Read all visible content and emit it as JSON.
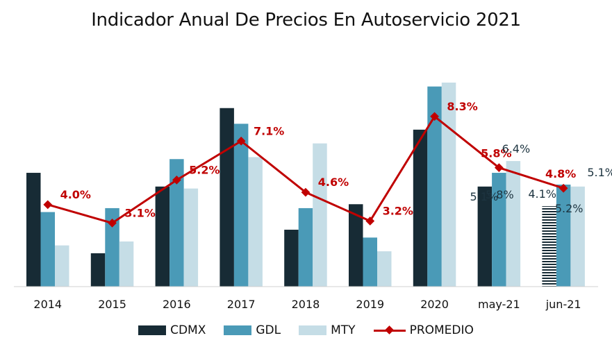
{
  "chart_data": {
    "type": "bar",
    "title": "Indicador Anual De Precios En Autoservicio 2021",
    "categories": [
      "2014",
      "2015",
      "2016",
      "2017",
      "2018",
      "2019",
      "2020",
      "may-21",
      "jun-21"
    ],
    "series": [
      {
        "name": "CDMX",
        "type": "bar",
        "color": "#172b35",
        "values": [
          5.8,
          1.7,
          5.1,
          9.1,
          2.9,
          4.2,
          8.0,
          5.1,
          4.1
        ]
      },
      {
        "name": "GDL",
        "type": "bar",
        "color": "#4a9ab7",
        "values": [
          3.8,
          4.0,
          6.5,
          8.3,
          4.0,
          2.5,
          10.2,
          5.8,
          5.2
        ]
      },
      {
        "name": "MTY",
        "type": "bar",
        "color": "#c5dde6",
        "values": [
          2.1,
          2.3,
          5.0,
          6.6,
          7.3,
          1.8,
          10.4,
          6.4,
          5.1
        ]
      },
      {
        "name": "PROMEDIO",
        "type": "line",
        "color": "#c00000",
        "values": [
          4.0,
          3.1,
          5.2,
          7.1,
          4.6,
          3.2,
          8.3,
          5.8,
          4.8
        ]
      }
    ],
    "data_labels": {
      "promedio": [
        "4.0%",
        "3.1%",
        "5.2%",
        "7.1%",
        "4.6%",
        "3.2%",
        "8.3%",
        "5.8%",
        "4.8%"
      ],
      "may21": {
        "cdmx": "5.1%",
        "gdl": "5.8%",
        "mty": "6.4%"
      },
      "jun21": {
        "cdmx": "4.1%",
        "gdl": "5.2%",
        "mty": "5.1%"
      }
    },
    "ylim": [
      0,
      11
    ],
    "grid": false,
    "legend_position": "bottom"
  }
}
